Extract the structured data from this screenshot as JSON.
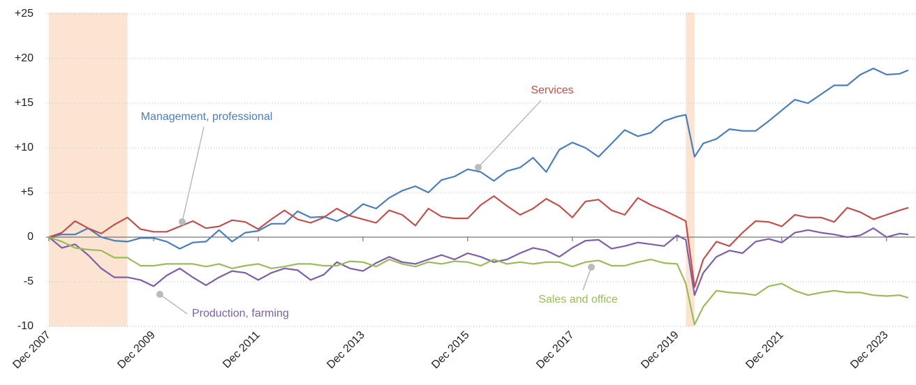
{
  "chart_data": {
    "type": "line",
    "xlim": [
      "2007-12",
      "2024-05"
    ],
    "xticks": [
      {
        "value": "2007-12",
        "label": "Dec 2007"
      },
      {
        "value": "2009-12",
        "label": "Dec 2009"
      },
      {
        "value": "2011-12",
        "label": "Dec 2011"
      },
      {
        "value": "2013-12",
        "label": "Dec 2013"
      },
      {
        "value": "2015-12",
        "label": "Dec 2015"
      },
      {
        "value": "2017-12",
        "label": "Dec 2017"
      },
      {
        "value": "2019-12",
        "label": "Dec 2019"
      },
      {
        "value": "2021-12",
        "label": "Dec 2021"
      },
      {
        "value": "2023-12",
        "label": "Dec 2023"
      }
    ],
    "ylim": [
      -10,
      25
    ],
    "yticks": [
      {
        "value": 25,
        "label": "+25"
      },
      {
        "value": 20,
        "label": "+20"
      },
      {
        "value": 15,
        "label": "+15"
      },
      {
        "value": 10,
        "label": "+10"
      },
      {
        "value": 5,
        "label": "+5"
      },
      0,
      -5,
      -10
    ],
    "grid": true,
    "shaded_periods": [
      [
        "2007-12",
        "2009-06"
      ],
      [
        "2020-02",
        "2020-04"
      ]
    ],
    "shade_color": "#fce4d2",
    "x": [
      "2007-12",
      "2008-03",
      "2008-06",
      "2008-09",
      "2008-12",
      "2009-03",
      "2009-06",
      "2009-09",
      "2009-12",
      "2010-03",
      "2010-06",
      "2010-09",
      "2010-12",
      "2011-03",
      "2011-06",
      "2011-09",
      "2011-12",
      "2012-03",
      "2012-06",
      "2012-09",
      "2012-12",
      "2013-03",
      "2013-06",
      "2013-09",
      "2013-12",
      "2014-03",
      "2014-06",
      "2014-09",
      "2014-12",
      "2015-03",
      "2015-06",
      "2015-09",
      "2015-12",
      "2016-03",
      "2016-06",
      "2016-09",
      "2016-12",
      "2017-03",
      "2017-06",
      "2017-09",
      "2017-12",
      "2018-03",
      "2018-06",
      "2018-09",
      "2018-12",
      "2019-03",
      "2019-06",
      "2019-09",
      "2019-12",
      "2020-02",
      "2020-04",
      "2020-06",
      "2020-09",
      "2020-12",
      "2021-03",
      "2021-06",
      "2021-09",
      "2021-12",
      "2022-03",
      "2022-06",
      "2022-09",
      "2022-12",
      "2023-03",
      "2023-06",
      "2023-09",
      "2023-12",
      "2024-03",
      "2024-05"
    ],
    "series": [
      {
        "name": "Management, professional",
        "color": "#4a7ebb",
        "values": [
          0,
          0.3,
          0.3,
          1.0,
          0,
          -0.4,
          -0.5,
          -0.1,
          -0.1,
          -0.5,
          -1.3,
          -0.6,
          -0.5,
          0.8,
          -0.5,
          0.5,
          0.7,
          1.5,
          1.5,
          2.9,
          2.2,
          2.3,
          1.8,
          2.5,
          3.7,
          3.2,
          4.4,
          5.2,
          5.7,
          5.0,
          6.4,
          6.8,
          7.6,
          7.3,
          6.3,
          7.4,
          7.8,
          8.9,
          7.3,
          9.8,
          10.6,
          10.0,
          9.0,
          10.5,
          12.0,
          11.3,
          11.7,
          13.0,
          13.5,
          13.7,
          9.0,
          10.5,
          11.0,
          12.1,
          11.9,
          11.9,
          13.0,
          14.2,
          15.4,
          15.0,
          16.0,
          17.0,
          17.0,
          18.2,
          18.9,
          18.2,
          18.3,
          18.7
        ]
      },
      {
        "name": "Services",
        "color": "#c0504d",
        "values": [
          0,
          0.5,
          1.8,
          1.0,
          0.4,
          1.4,
          2.2,
          0.9,
          0.6,
          0.6,
          1.2,
          1.8,
          1.0,
          1.2,
          1.9,
          1.7,
          0.9,
          2.0,
          3.0,
          2.0,
          1.6,
          2.2,
          3.2,
          2.4,
          2.0,
          1.6,
          3.0,
          2.5,
          1.3,
          3.2,
          2.3,
          2.1,
          2.1,
          3.6,
          4.6,
          3.5,
          2.5,
          3.2,
          4.3,
          3.5,
          2.2,
          4.0,
          4.2,
          3.0,
          2.5,
          4.4,
          3.6,
          3.0,
          2.3,
          1.8,
          -5.6,
          -2.5,
          -0.5,
          -1.0,
          0.5,
          1.8,
          1.7,
          1.2,
          2.5,
          2.2,
          2.2,
          1.7,
          3.3,
          2.8,
          2.0,
          2.5,
          3.0,
          3.3
        ]
      },
      {
        "name": "Production, farming",
        "color": "#7d5ea8",
        "values": [
          0,
          -1.2,
          -0.8,
          -2.0,
          -3.5,
          -4.5,
          -4.5,
          -4.8,
          -5.5,
          -4.3,
          -3.5,
          -4.5,
          -5.4,
          -4.5,
          -3.8,
          -4.0,
          -4.8,
          -4.0,
          -3.5,
          -3.7,
          -4.8,
          -4.2,
          -2.8,
          -3.5,
          -3.8,
          -2.9,
          -2.2,
          -2.8,
          -3.0,
          -2.5,
          -2.0,
          -2.5,
          -1.8,
          -2.2,
          -2.8,
          -2.5,
          -1.8,
          -1.2,
          -1.5,
          -2.2,
          -1.2,
          -0.4,
          -0.3,
          -1.3,
          -1.0,
          -0.6,
          -0.8,
          -1.0,
          0.2,
          -0.3,
          -6.5,
          -4.0,
          -2.2,
          -1.5,
          -1.8,
          -0.5,
          -0.2,
          -0.6,
          0.5,
          0.8,
          0.5,
          0.3,
          0.0,
          0.2,
          1.0,
          0.0,
          0.4,
          0.3
        ]
      },
      {
        "name": "Sales and office",
        "color": "#9bbb59",
        "values": [
          0,
          -0.5,
          -1.2,
          -1.4,
          -1.5,
          -2.3,
          -2.3,
          -3.2,
          -3.2,
          -3.0,
          -3.0,
          -3.0,
          -3.3,
          -3.0,
          -3.5,
          -3.2,
          -3.0,
          -3.5,
          -3.3,
          -3.0,
          -3.0,
          -3.2,
          -3.2,
          -2.7,
          -2.8,
          -3.3,
          -2.5,
          -3.0,
          -3.3,
          -2.8,
          -3.0,
          -2.7,
          -2.8,
          -3.2,
          -2.5,
          -3.0,
          -2.8,
          -3.0,
          -2.8,
          -2.8,
          -3.3,
          -2.8,
          -2.6,
          -3.2,
          -3.2,
          -2.8,
          -2.5,
          -2.9,
          -3.0,
          -5.2,
          -9.8,
          -7.8,
          -6.0,
          -6.2,
          -6.3,
          -6.5,
          -5.5,
          -5.2,
          -6.0,
          -6.5,
          -6.2,
          -6.0,
          -6.2,
          -6.2,
          -6.5,
          -6.6,
          -6.5,
          -6.8
        ]
      }
    ]
  }
}
